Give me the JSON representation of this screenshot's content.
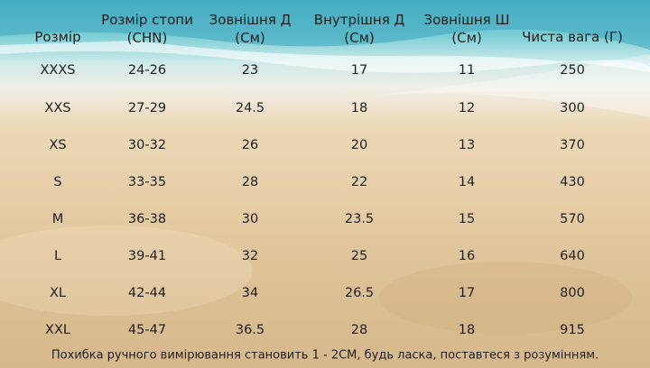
{
  "table": {
    "header": [
      [
        "Розмір"
      ],
      [
        "Розмір стопи",
        "(CHN)"
      ],
      [
        "Зовнішня Д",
        "(См)"
      ],
      [
        "Внутрішня Д",
        "(См)"
      ],
      [
        "Зовнішня Ш",
        "(См)"
      ],
      [
        "Чиста вага (Г)"
      ]
    ],
    "rows": [
      [
        "XXXS",
        "24-26",
        "23",
        "17",
        "11",
        "250"
      ],
      [
        "XXS",
        "27-29",
        "24.5",
        "18",
        "12",
        "300"
      ],
      [
        "XS",
        "30-32",
        "26",
        "20",
        "13",
        "370"
      ],
      [
        "S",
        "33-35",
        "28",
        "22",
        "14",
        "430"
      ],
      [
        "M",
        "36-38",
        "30",
        "23.5",
        "15",
        "570"
      ],
      [
        "L",
        "39-41",
        "32",
        "25",
        "16",
        "640"
      ],
      [
        "XL",
        "42-44",
        "34",
        "26.5",
        "17",
        "800"
      ],
      [
        "XXL",
        "45-47",
        "36.5",
        "28",
        "18",
        "915"
      ]
    ]
  },
  "footer": "Похибка ручного вимірювання становить 1 - 2CM, будь ласка, поставтеся з розумінням."
}
